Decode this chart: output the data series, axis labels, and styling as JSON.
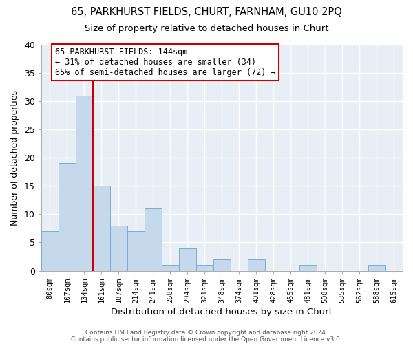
{
  "title1": "65, PARKHURST FIELDS, CHURT, FARNHAM, GU10 2PQ",
  "title2": "Size of property relative to detached houses in Churt",
  "xlabel": "Distribution of detached houses by size in Churt",
  "ylabel": "Number of detached properties",
  "categories": [
    "80sqm",
    "107sqm",
    "134sqm",
    "161sqm",
    "187sqm",
    "214sqm",
    "241sqm",
    "268sqm",
    "294sqm",
    "321sqm",
    "348sqm",
    "374sqm",
    "401sqm",
    "428sqm",
    "455sqm",
    "481sqm",
    "508sqm",
    "535sqm",
    "562sqm",
    "588sqm",
    "615sqm"
  ],
  "values": [
    7,
    19,
    31,
    15,
    8,
    7,
    11,
    1,
    4,
    1,
    2,
    0,
    2,
    0,
    0,
    1,
    0,
    0,
    0,
    1,
    0
  ],
  "bar_color": "#c6d9ec",
  "bar_edge_color": "#7aaec8",
  "vline_color": "#cc0000",
  "annotation_text": "65 PARKHURST FIELDS: 144sqm\n← 31% of detached houses are smaller (34)\n65% of semi-detached houses are larger (72) →",
  "annotation_box_color": "#ffffff",
  "annotation_box_edge": "#cc0000",
  "ylim": [
    0,
    40
  ],
  "yticks": [
    0,
    5,
    10,
    15,
    20,
    25,
    30,
    35,
    40
  ],
  "footer1": "Contains HM Land Registry data © Crown copyright and database right 2024.",
  "footer2": "Contains public sector information licensed under the Open Government Licence v3.0.",
  "background_color": "#ffffff",
  "plot_bg_color": "#e8eef5",
  "grid_color": "#ffffff"
}
